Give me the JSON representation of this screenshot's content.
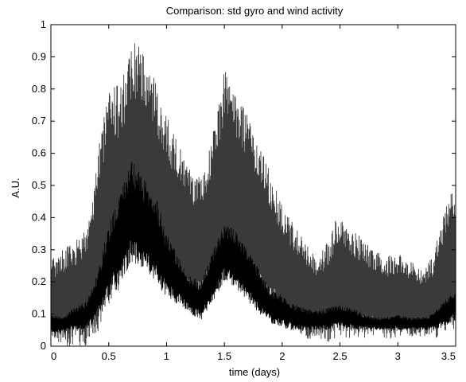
{
  "chart_data": {
    "type": "line",
    "title": "Comparison: std gyro and wind activity",
    "xlabel": "time (days)",
    "ylabel": "A.U.",
    "xlim": [
      0,
      3.5
    ],
    "ylim": [
      0,
      1
    ],
    "x_ticks": [
      "0",
      "0.5",
      "1",
      "1.5",
      "2",
      "2.5",
      "3",
      "3.5"
    ],
    "y_ticks": [
      "0",
      "0.1",
      "0.2",
      "0.3",
      "0.4",
      "0.5",
      "0.6",
      "0.7",
      "0.8",
      "0.9",
      "1"
    ],
    "grid": false,
    "legend": "none",
    "series": [
      {
        "color": "#3a3a3a",
        "style": "dense noisy envelope (upper trace)",
        "x": [
          0,
          0.1,
          0.2,
          0.3,
          0.4,
          0.5,
          0.6,
          0.7,
          0.8,
          0.9,
          1.0,
          1.1,
          1.2,
          1.3,
          1.4,
          1.5,
          1.6,
          1.7,
          1.8,
          1.9,
          2.0,
          2.1,
          2.2,
          2.3,
          2.4,
          2.5,
          2.6,
          2.7,
          2.8,
          2.9,
          3.0,
          3.1,
          3.2,
          3.3,
          3.4,
          3.5
        ],
        "upper": [
          0.27,
          0.3,
          0.33,
          0.36,
          0.58,
          0.84,
          0.8,
          0.95,
          0.92,
          0.83,
          0.72,
          0.63,
          0.55,
          0.52,
          0.67,
          0.86,
          0.79,
          0.72,
          0.63,
          0.54,
          0.44,
          0.38,
          0.32,
          0.27,
          0.33,
          0.43,
          0.37,
          0.33,
          0.3,
          0.28,
          0.29,
          0.27,
          0.24,
          0.28,
          0.42,
          0.52
        ],
        "lower": [
          0.02,
          0.0,
          0.0,
          0.0,
          0.04,
          0.12,
          0.18,
          0.24,
          0.26,
          0.2,
          0.16,
          0.14,
          0.12,
          0.1,
          0.14,
          0.2,
          0.2,
          0.15,
          0.1,
          0.08,
          0.06,
          0.04,
          0.02,
          0.02,
          0.01,
          0.03,
          0.02,
          0.02,
          0.03,
          0.02,
          0.03,
          0.03,
          0.02,
          0.02,
          0.03,
          0.05
        ]
      },
      {
        "color": "#000000",
        "style": "darker inner trace",
        "x": [
          0,
          0.1,
          0.2,
          0.3,
          0.4,
          0.5,
          0.6,
          0.7,
          0.8,
          0.9,
          1.0,
          1.1,
          1.2,
          1.3,
          1.4,
          1.5,
          1.6,
          1.7,
          1.8,
          1.9,
          2.0,
          2.1,
          2.2,
          2.3,
          2.4,
          2.5,
          2.6,
          2.7,
          2.8,
          2.9,
          3.0,
          3.1,
          3.2,
          3.3,
          3.4,
          3.5
        ],
        "upper": [
          0.1,
          0.09,
          0.12,
          0.14,
          0.22,
          0.38,
          0.48,
          0.58,
          0.52,
          0.48,
          0.35,
          0.28,
          0.22,
          0.2,
          0.3,
          0.38,
          0.36,
          0.3,
          0.24,
          0.18,
          0.16,
          0.13,
          0.12,
          0.11,
          0.12,
          0.13,
          0.12,
          0.1,
          0.09,
          0.09,
          0.1,
          0.09,
          0.09,
          0.1,
          0.14,
          0.18
        ],
        "lower": [
          0.04,
          0.04,
          0.05,
          0.05,
          0.08,
          0.14,
          0.2,
          0.26,
          0.24,
          0.2,
          0.15,
          0.13,
          0.1,
          0.08,
          0.14,
          0.2,
          0.18,
          0.14,
          0.1,
          0.07,
          0.06,
          0.05,
          0.05,
          0.05,
          0.05,
          0.06,
          0.05,
          0.05,
          0.05,
          0.05,
          0.05,
          0.05,
          0.05,
          0.05,
          0.06,
          0.08
        ]
      }
    ]
  }
}
